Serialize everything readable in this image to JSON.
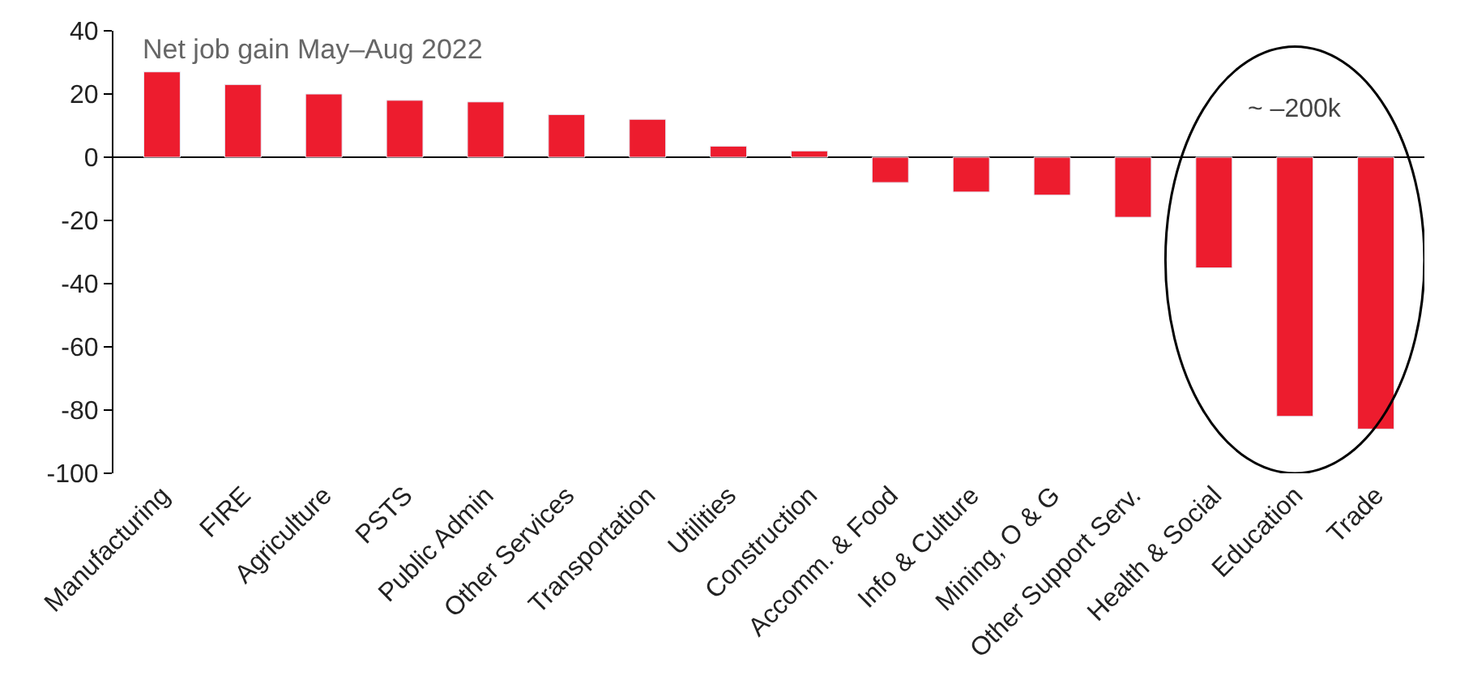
{
  "chart_data": {
    "type": "bar",
    "title": "Net job gain May–Aug 2022",
    "categories": [
      "Manufacturing",
      "FIRE",
      "Agriculture",
      "PSTS",
      "Public Admin",
      "Other Services",
      "Transportation",
      "Utilities",
      "Construction",
      "Accomm. & Food",
      "Info & Culture",
      "Mining, O & G",
      "Other Support Serv.",
      "Health & Social",
      "Education",
      "Trade"
    ],
    "values": [
      27,
      23,
      20,
      18,
      17.5,
      13.5,
      12,
      3.5,
      2,
      -8,
      -11,
      -12,
      -19,
      -35,
      -82,
      -86
    ],
    "color": "#ed1c2e",
    "ylim": [
      -100,
      40
    ],
    "yticks": [
      -100,
      -80,
      -60,
      -40,
      -20,
      0,
      20,
      40
    ],
    "annotations": [
      "~ –200k"
    ]
  }
}
